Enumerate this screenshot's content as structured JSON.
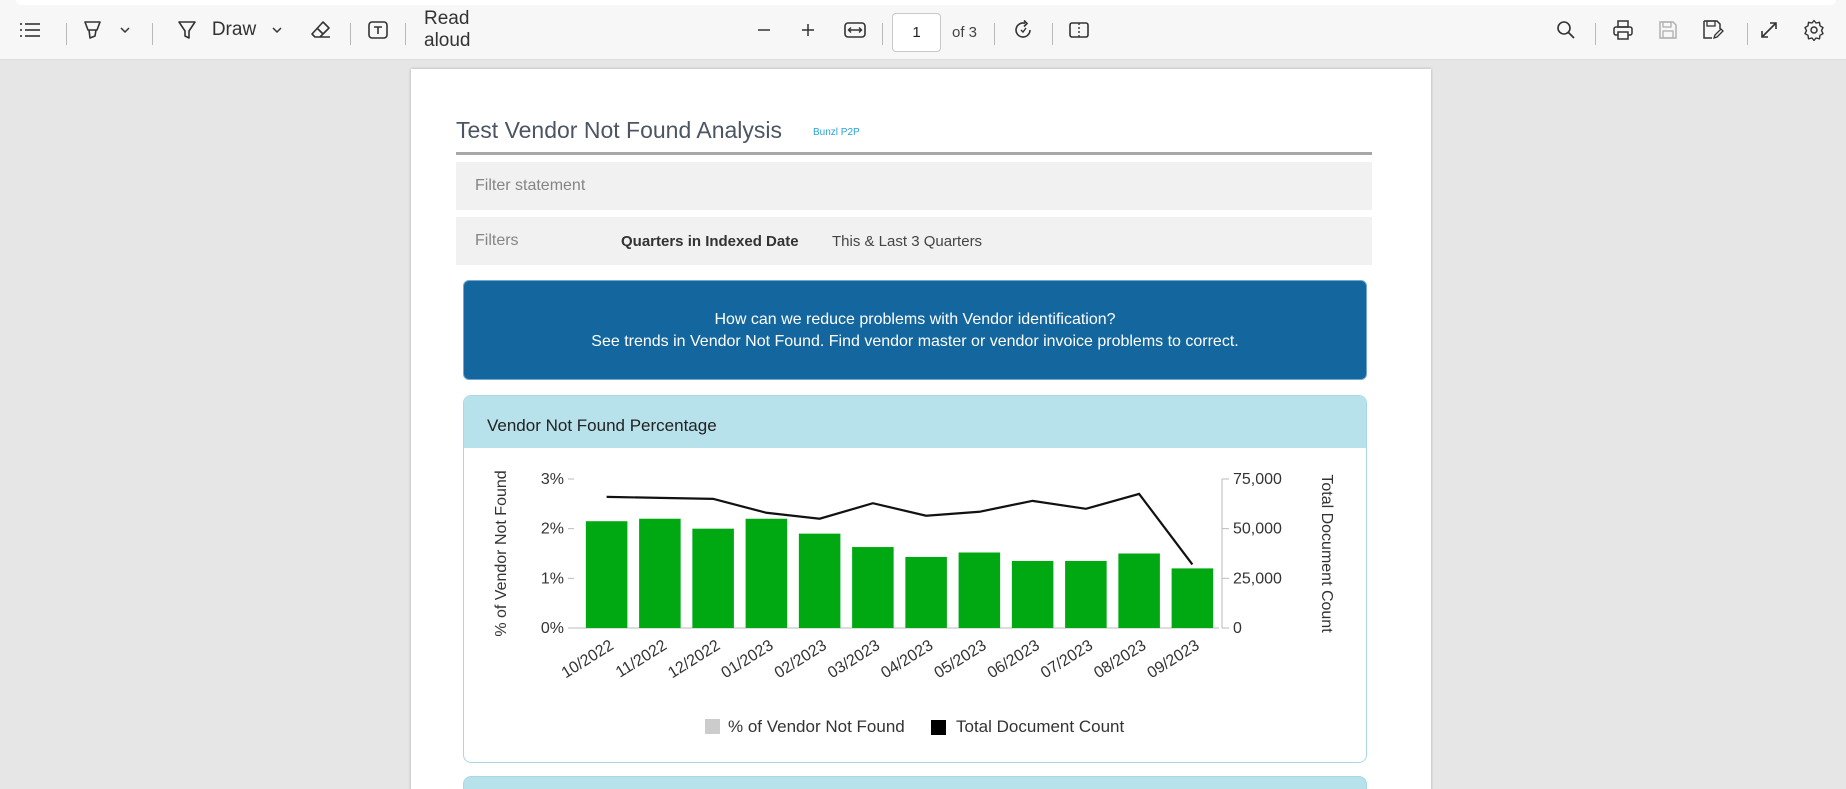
{
  "toolbar": {
    "draw_label": "Draw",
    "read_aloud_label": "Read aloud",
    "page_number": "1",
    "page_of": "of 3"
  },
  "report": {
    "title": "Test Vendor Not Found Analysis",
    "subtitle": "Bunzl P2P",
    "filter_statement": "Filter statement",
    "filters_label": "Filters",
    "filter_key": "Quarters in Indexed Date",
    "filter_value": "This & Last 3 Quarters",
    "info_line1": "How can we reduce problems with Vendor identification?",
    "info_line2": "See trends in Vendor Not Found.  Find vendor master or vendor invoice problems to correct.",
    "chart_card_title": "Vendor Not Found Percentage"
  },
  "colors": {
    "bar": "#00a812",
    "line": "#111111",
    "info_bg": "#13679e",
    "card_header": "#b7e1eb",
    "legend_pct": "#cccccc",
    "legend_count": "#000000"
  },
  "chart_data": {
    "type": "bar",
    "categories": [
      "10/2022",
      "11/2022",
      "12/2022",
      "01/2023",
      "02/2023",
      "03/2023",
      "04/2023",
      "05/2023",
      "06/2023",
      "07/2023",
      "08/2023",
      "09/2023"
    ],
    "series": [
      {
        "name": "% of Vendor Not Found",
        "type": "bar",
        "axis": "left",
        "values": [
          2.15,
          2.2,
          2.0,
          2.2,
          1.9,
          1.63,
          1.43,
          1.52,
          1.35,
          1.35,
          1.5,
          1.2
        ]
      },
      {
        "name": "Total Document Count",
        "type": "line",
        "axis": "right",
        "values": [
          66000,
          65500,
          65000,
          58000,
          55000,
          62800,
          56500,
          58500,
          64000,
          60000,
          67500,
          32000
        ]
      }
    ],
    "ylabel": "% of Vendor Not Found",
    "y2label": "Total Document Count",
    "ylim": [
      0,
      3
    ],
    "y2lim": [
      0,
      75000
    ],
    "yticks": [
      "0%",
      "1%",
      "2%",
      "3%"
    ],
    "y2ticks": [
      "0",
      "25,000",
      "50,000",
      "75,000"
    ],
    "legend_position": "bottom",
    "grid": false
  }
}
